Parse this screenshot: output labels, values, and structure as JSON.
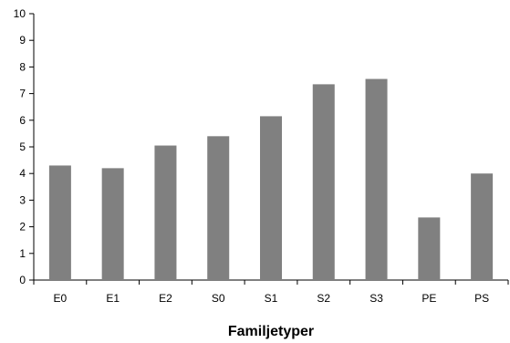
{
  "chart_data": {
    "type": "bar",
    "title": "",
    "xlabel": "Familjetyper",
    "ylabel": "",
    "categories": [
      "E0",
      "E1",
      "E2",
      "S0",
      "S1",
      "S2",
      "S3",
      "PE",
      "PS"
    ],
    "values": [
      4.3,
      4.2,
      5.05,
      5.4,
      6.15,
      7.35,
      7.55,
      2.35,
      4.0
    ],
    "ylim": [
      0,
      10
    ],
    "yticks": [
      "0",
      "1",
      "2",
      "3",
      "4",
      "5",
      "6",
      "7",
      "8",
      "9",
      "10"
    ],
    "grid": false,
    "legend": "none",
    "bar_color": "#808080",
    "axis_color": "#000000"
  }
}
